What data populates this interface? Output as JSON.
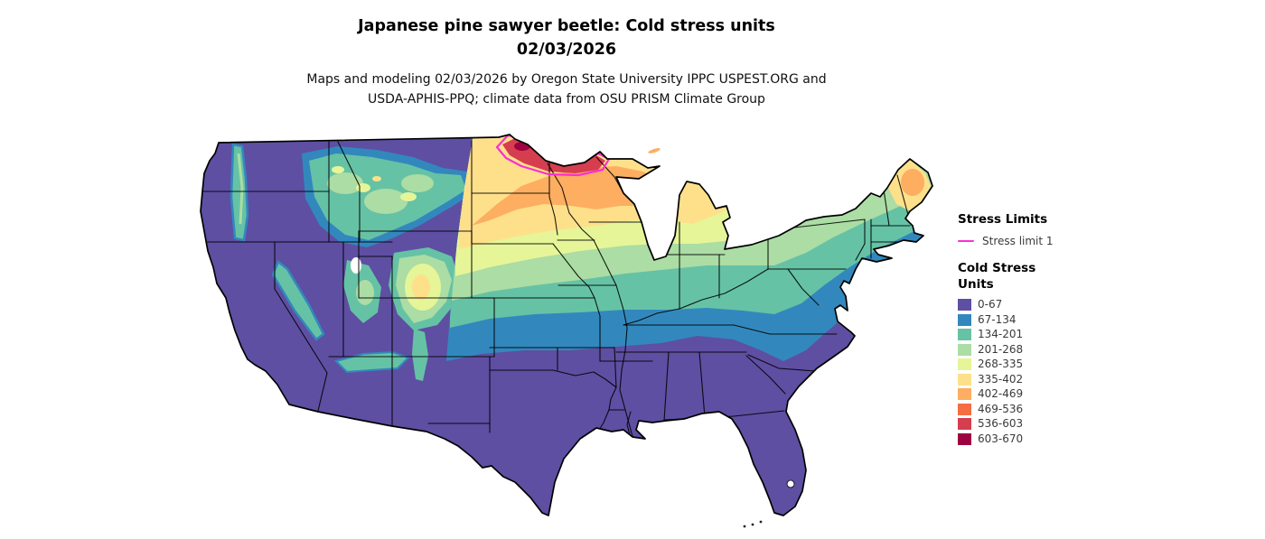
{
  "header": {
    "title_line1": "Japanese pine sawyer beetle: Cold stress units",
    "title_line2": "02/03/2026",
    "subtitle_line1": "Maps and modeling 02/03/2026 by Oregon State University IPPC USPEST.ORG and",
    "subtitle_line2": "USDA-APHIS-PPQ; climate data from OSU PRISM Climate Group"
  },
  "map": {
    "type": "choropleth-raster-map",
    "region": "Continental United States",
    "variable": "Cold stress units"
  },
  "legend": {
    "stress_limits": {
      "heading": "Stress Limits",
      "items": [
        {
          "label": "Stress limit 1",
          "color": "#fb2fd2"
        }
      ]
    },
    "cold_stress_units": {
      "heading_lines": [
        "Cold Stress",
        "Units"
      ],
      "bins": [
        {
          "label": "0-67",
          "color": "#5e4fa2"
        },
        {
          "label": "67-134",
          "color": "#3288bd"
        },
        {
          "label": "134-201",
          "color": "#66c2a5"
        },
        {
          "label": "201-268",
          "color": "#abdda4"
        },
        {
          "label": "268-335",
          "color": "#e6f598"
        },
        {
          "label": "335-402",
          "color": "#fee08b"
        },
        {
          "label": "402-469",
          "color": "#fdae61"
        },
        {
          "label": "469-536",
          "color": "#f46d43"
        },
        {
          "label": "536-603",
          "color": "#d53e4f"
        },
        {
          "label": "603-670",
          "color": "#9e0142"
        }
      ]
    }
  }
}
